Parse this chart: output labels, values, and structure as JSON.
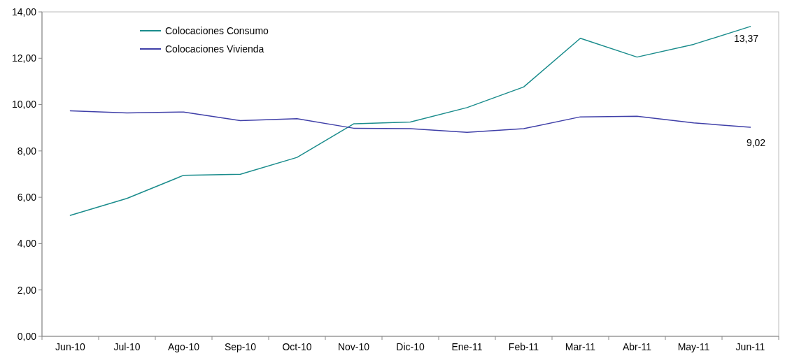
{
  "chart_data": {
    "type": "line",
    "categories": [
      "Jun-10",
      "Jul-10",
      "Ago-10",
      "Sep-10",
      "Oct-10",
      "Nov-10",
      "Dic-10",
      "Ene-11",
      "Feb-11",
      "Mar-11",
      "Abr-11",
      "May-11",
      "Jun-11"
    ],
    "series": [
      {
        "name": "Colocaciones Consumo",
        "color": "#1a8c8c",
        "values": [
          5.22,
          5.95,
          6.95,
          6.99,
          7.72,
          9.17,
          9.25,
          9.87,
          10.76,
          12.86,
          12.05,
          12.6,
          13.37
        ],
        "value_labels": [
          null,
          null,
          null,
          null,
          null,
          null,
          null,
          null,
          null,
          null,
          null,
          null,
          "13,37"
        ]
      },
      {
        "name": "Colocaciones Vivienda",
        "color": "#3f3fa8",
        "values": [
          9.73,
          9.64,
          9.68,
          9.31,
          9.39,
          8.98,
          8.96,
          8.8,
          8.96,
          9.47,
          9.5,
          9.21,
          9.02
        ],
        "value_labels": [
          null,
          null,
          null,
          null,
          null,
          null,
          null,
          null,
          null,
          null,
          null,
          null,
          "9,02"
        ]
      }
    ],
    "ylim": [
      0,
      14
    ],
    "yticks": [
      {
        "value": 0,
        "label": "0,00"
      },
      {
        "value": 2,
        "label": "2,00"
      },
      {
        "value": 4,
        "label": "4,00"
      },
      {
        "value": 6,
        "label": "6,00"
      },
      {
        "value": 8,
        "label": "8,00"
      },
      {
        "value": 10,
        "label": "10,00"
      },
      {
        "value": 12,
        "label": "12,00"
      },
      {
        "value": 14,
        "label": "14,00"
      }
    ],
    "legend": "top left",
    "marker": "none",
    "line_style": "solid"
  }
}
